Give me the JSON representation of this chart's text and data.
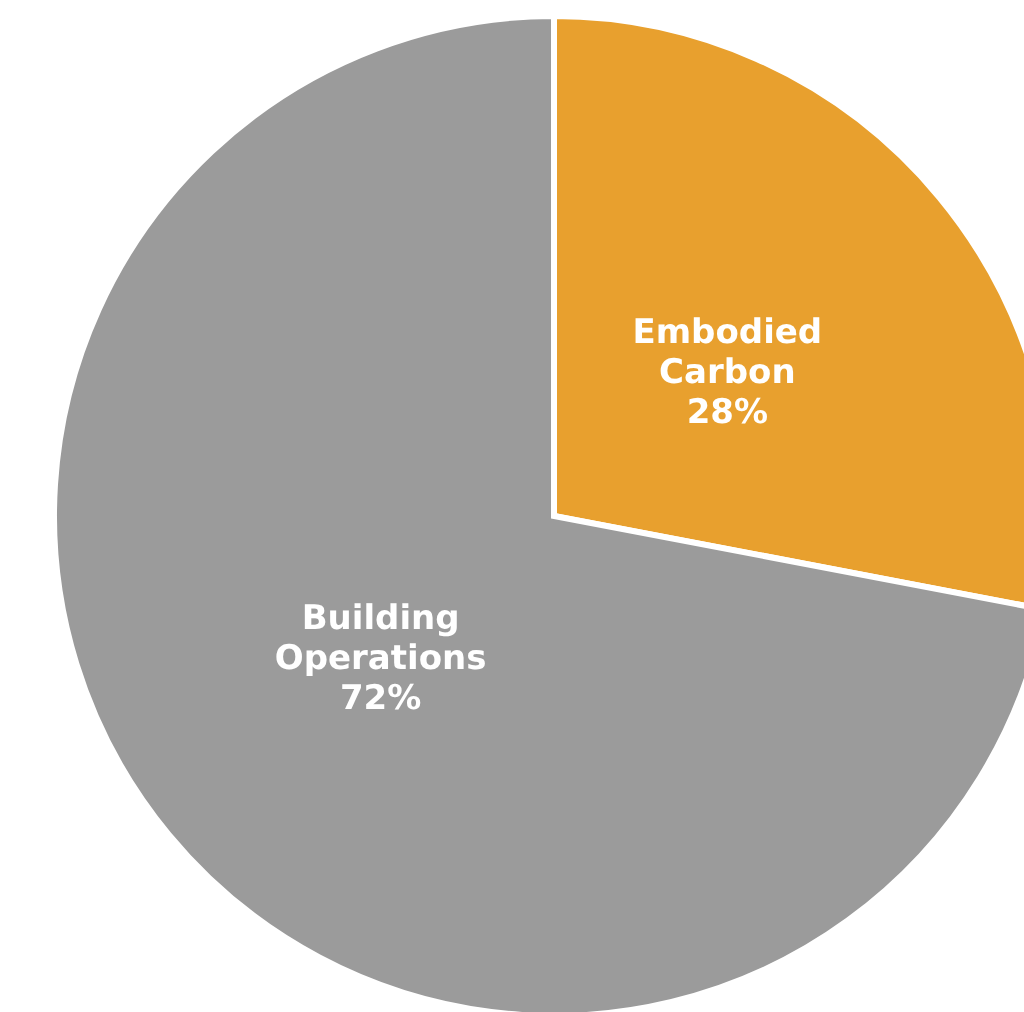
{
  "chart_data": {
    "type": "pie",
    "categories": [
      "Embodied Carbon",
      "Building Operations"
    ],
    "values": [
      28,
      72
    ],
    "colors": [
      "#e8a02e",
      "#9b9b9b"
    ],
    "value_labels": [
      "28%",
      "72%"
    ]
  }
}
